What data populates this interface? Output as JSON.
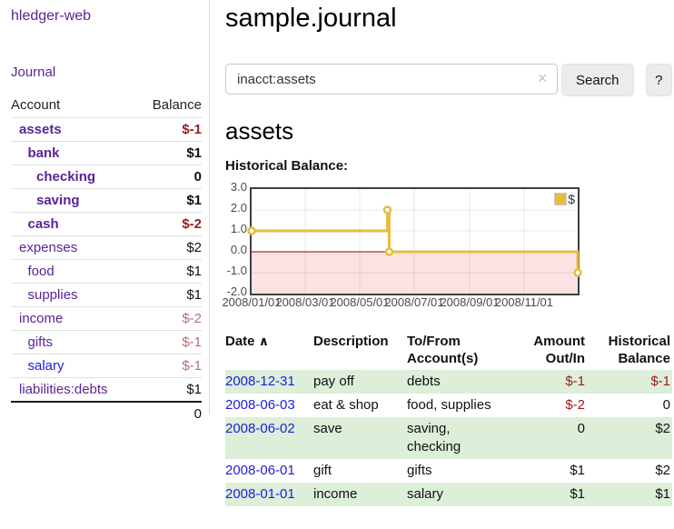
{
  "colors": {
    "link_purple": "#5b2399",
    "link_blue": "#1d1de0",
    "negative_strong": "#9c1b1b",
    "negative_soft": "#b96f6f",
    "row_green": "#ddeed9",
    "series_gold": "#e7bc3f",
    "zero_line_red": "#8b0000",
    "negative_region_fill": "rgba(235,80,80,0.16)"
  },
  "sidebar": {
    "brand": "hledger-web",
    "journal_link": "Journal",
    "accounts_table": {
      "account_header": "Account",
      "balance_header": "Balance",
      "rows": [
        {
          "name": "assets",
          "indent": 1,
          "bold": true,
          "balance": "$-1",
          "balance_class": "neg-strong"
        },
        {
          "name": "bank",
          "indent": 2,
          "bold": true,
          "balance": "$1",
          "balance_class": ""
        },
        {
          "name": "checking",
          "indent": 3,
          "bold": true,
          "balance": "0",
          "balance_class": ""
        },
        {
          "name": "saving",
          "indent": 3,
          "bold": true,
          "balance": "$1",
          "balance_class": ""
        },
        {
          "name": "cash",
          "indent": 2,
          "bold": true,
          "balance": "$-2",
          "balance_class": "neg-strong"
        },
        {
          "name": "expenses",
          "indent": 1,
          "bold": false,
          "balance": "$2",
          "balance_class": ""
        },
        {
          "name": "food",
          "indent": 2,
          "bold": false,
          "balance": "$1",
          "balance_class": ""
        },
        {
          "name": "supplies",
          "indent": 2,
          "bold": false,
          "balance": "$1",
          "balance_class": ""
        },
        {
          "name": "income",
          "indent": 1,
          "bold": false,
          "balance": "$-2",
          "balance_class": "neg-soft"
        },
        {
          "name": "gifts",
          "indent": 2,
          "bold": false,
          "balance": "$-1",
          "balance_class": "neg-soft"
        },
        {
          "name": "salary",
          "indent": 2,
          "bold": false,
          "balance": "$-1",
          "balance_class": "neg-soft",
          "link_color": "blue"
        },
        {
          "name": "liabilities:debts",
          "indent": 1,
          "bold": false,
          "balance": "$1",
          "balance_class": ""
        }
      ],
      "total": "0"
    }
  },
  "header": {
    "title": "sample.journal"
  },
  "search": {
    "value": "inacct:assets",
    "clear_icon": "✕",
    "search_label": "Search",
    "help_label": "?"
  },
  "account_page": {
    "heading": "assets",
    "chart_label": "Historical Balance:"
  },
  "chart_data": {
    "type": "line",
    "step": true,
    "title": "Historical Balance:",
    "legend_position": "top-right",
    "grid": true,
    "negative_region_shaded": true,
    "ylim": [
      -2,
      3
    ],
    "y_ticks": [
      3.0,
      2.0,
      1.0,
      0.0,
      -1.0,
      -2.0
    ],
    "x_range": [
      "2008-01-01",
      "2008-12-31"
    ],
    "x_total_days": 365,
    "x_ticks": [
      {
        "label": "2008/01/01",
        "day": 0
      },
      {
        "label": "2008/03/01",
        "day": 60
      },
      {
        "label": "2008/05/01",
        "day": 121
      },
      {
        "label": "2008/07/01",
        "day": 182
      },
      {
        "label": "2008/09/01",
        "day": 244
      },
      {
        "label": "2008/11/01",
        "day": 305
      }
    ],
    "series": [
      {
        "name": "$",
        "points": [
          {
            "date": "2008-01-01",
            "day": 0,
            "value": 1
          },
          {
            "date": "2008-06-01",
            "day": 152,
            "value": 2
          },
          {
            "date": "2008-06-03",
            "day": 154,
            "value": 0
          },
          {
            "date": "2008-12-31",
            "day": 365,
            "value": -1
          }
        ]
      }
    ]
  },
  "transactions": {
    "headers": {
      "date": "Date",
      "sort_icon": "∧",
      "description": "Description",
      "accounts": "To/From Account(s)",
      "amount": "Amount Out/In",
      "balance": "Historical Balance"
    },
    "rows": [
      {
        "date": "2008-12-31",
        "description": "pay off",
        "accounts": "debts",
        "amount": "$-1",
        "amount_negative": true,
        "balance": "$-1",
        "balance_negative": true
      },
      {
        "date": "2008-06-03",
        "description": "eat & shop",
        "accounts": "food, supplies",
        "amount": "$-2",
        "amount_negative": true,
        "balance": "0",
        "balance_negative": false
      },
      {
        "date": "2008-06-02",
        "description": "save",
        "accounts": "saving, checking",
        "amount": "0",
        "amount_negative": false,
        "balance": "$2",
        "balance_negative": false
      },
      {
        "date": "2008-06-01",
        "description": "gift",
        "accounts": "gifts",
        "amount": "$1",
        "amount_negative": false,
        "balance": "$2",
        "balance_negative": false
      },
      {
        "date": "2008-01-01",
        "description": "income",
        "accounts": "salary",
        "amount": "$1",
        "amount_negative": false,
        "balance": "$1",
        "balance_negative": false
      }
    ]
  }
}
